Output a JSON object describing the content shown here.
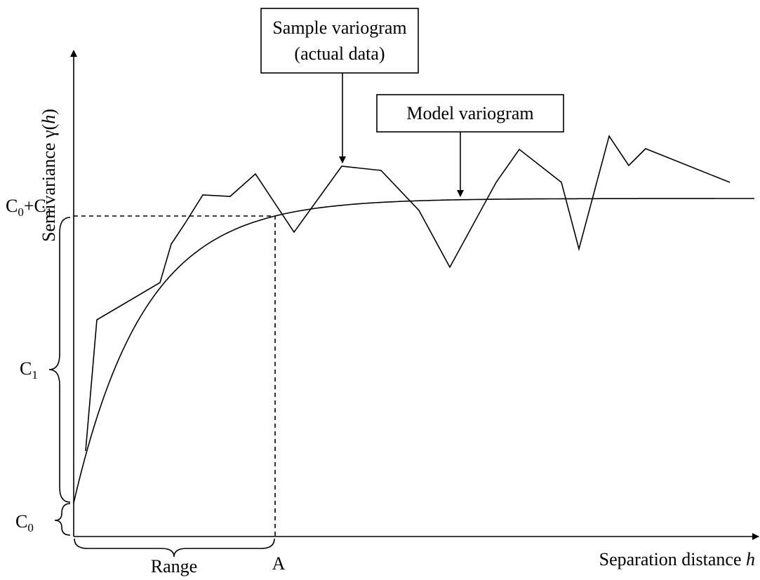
{
  "y_axis_label": [
    "Semivariance γ(",
    "h",
    ")"
  ],
  "x_axis_label": [
    "Separation distance ",
    "h"
  ],
  "sample_callout": [
    "Sample variogram",
    "(actual data)"
  ],
  "model_callout": "Model variogram",
  "sill_label": [
    "C",
    "0",
    "+C",
    "1"
  ],
  "partial_sill_label": [
    "C",
    "1"
  ],
  "nugget_label": [
    "C",
    "0"
  ],
  "range_label": "Range",
  "range_point_label": "A"
}
